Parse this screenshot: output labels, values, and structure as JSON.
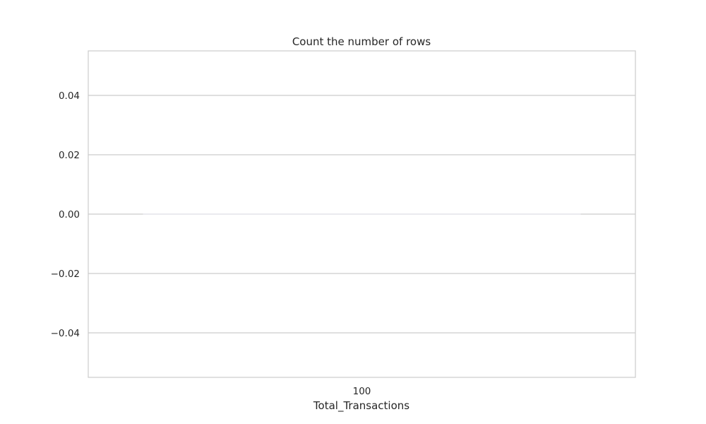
{
  "chart_data": {
    "type": "bar",
    "title": "Count the number of rows",
    "xlabel": "Total_Transactions",
    "ylabel": "",
    "categories": [
      "100"
    ],
    "values": [
      0
    ],
    "ylim": [
      -0.055,
      0.055
    ],
    "yticks": [
      0.04,
      0.02,
      0.0,
      -0.02,
      -0.04
    ],
    "ytick_labels": [
      "0.04",
      "0.02",
      "0.00",
      "−0.02",
      "−0.04"
    ],
    "grid": true,
    "legend": "none",
    "style": {
      "background": "#ffffff",
      "grid_color": "#cccccc",
      "spine_color": "#cccccc",
      "bar_color": "#e8e8ee",
      "text_color": "#262626"
    }
  }
}
